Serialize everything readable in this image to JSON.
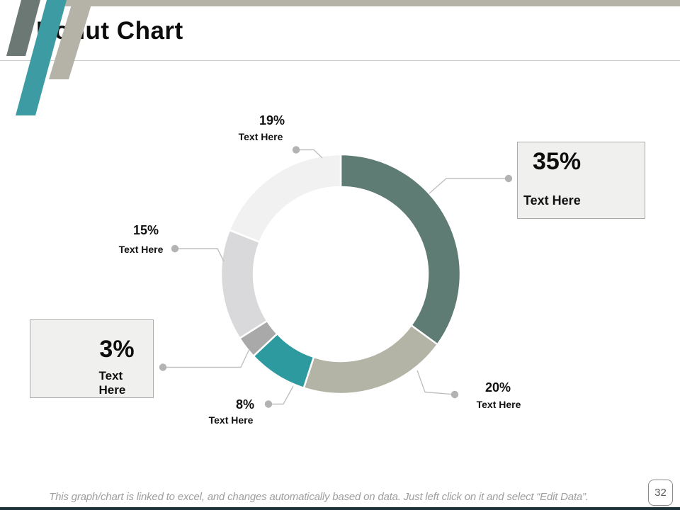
{
  "slide": {
    "title": "Donut Chart",
    "page_number": "32",
    "footer": "This graph/chart is linked to excel, and changes automatically based on data. Just left click on it and select “Edit Data”."
  },
  "chart_data": {
    "type": "pie",
    "subtype": "donut",
    "title": "Donut Chart",
    "direction": "clockwise",
    "start_angle_deg": 0,
    "inner_radius_ratio": 0.73,
    "legend": "none",
    "data_labels_format": "percent",
    "segments": [
      {
        "value": 35,
        "pct_label": "35%",
        "label": "Text Here",
        "color": "#5e7b74",
        "callout": "box"
      },
      {
        "value": 20,
        "pct_label": "20%",
        "label": "Text Here",
        "color": "#b3b3a6",
        "callout": "plain"
      },
      {
        "value": 8,
        "pct_label": "8%",
        "label": "Text Here",
        "color": "#2d9aa0",
        "callout": "plain"
      },
      {
        "value": 3,
        "pct_label": "3%",
        "label": "Text Here",
        "color": "#a9a9a9",
        "callout": "box"
      },
      {
        "value": 15,
        "pct_label": "15%",
        "label": "Text Here",
        "color": "#d9d9db",
        "callout": "plain"
      },
      {
        "value": 19,
        "pct_label": "19%",
        "label": "Text Here",
        "color": "#f1f1f2",
        "callout": "plain"
      }
    ]
  },
  "theme": {
    "accent_teal": "#3d9ca3",
    "accent_slate": "#6b7874",
    "accent_taupe": "#b5b3a8",
    "bottom_bar": "#1d3339",
    "leader_line": "#c0c0c0",
    "leader_dot": "#b3b3b3",
    "callout_fill": "#f0f0ef",
    "callout_border": "#ababab"
  }
}
